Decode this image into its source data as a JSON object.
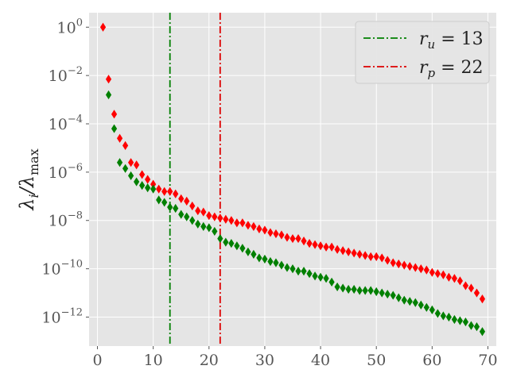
{
  "chart_data": {
    "type": "scatter",
    "title": "",
    "xlabel": "",
    "ylabel": "λi/λmax",
    "xlim": [
      -1.5,
      71.5
    ],
    "ylim_log10": [
      -13.2,
      0.6
    ],
    "y_scale": "log",
    "grid": true,
    "legend_position": "top-right",
    "x_ticks": [
      0,
      10,
      20,
      30,
      40,
      50,
      60,
      70
    ],
    "y_ticks": [
      {
        "exp": 0,
        "label": "10",
        "sup": "0"
      },
      {
        "exp": -2,
        "label": "10",
        "sup": "−2"
      },
      {
        "exp": -4,
        "label": "10",
        "sup": "−4"
      },
      {
        "exp": -6,
        "label": "10",
        "sup": "−6"
      },
      {
        "exp": -8,
        "label": "10",
        "sup": "−8"
      },
      {
        "exp": -10,
        "label": "10",
        "sup": "−10"
      },
      {
        "exp": -12,
        "label": "10",
        "sup": "−12"
      }
    ],
    "series": [
      {
        "color": "#ff0000",
        "marker": "diamond",
        "x": [
          1,
          2,
          3,
          4,
          5,
          6,
          7,
          8,
          9,
          10,
          11,
          12,
          13,
          14,
          15,
          16,
          17,
          18,
          19,
          20,
          21,
          22,
          23,
          24,
          25,
          26,
          27,
          28,
          29,
          30,
          31,
          32,
          33,
          34,
          35,
          36,
          37,
          38,
          39,
          40,
          41,
          42,
          43,
          44,
          45,
          46,
          47,
          48,
          49,
          50,
          51,
          52,
          53,
          54,
          55,
          56,
          57,
          58,
          59,
          60,
          61,
          62,
          63,
          64,
          65,
          66,
          67,
          68,
          69
        ],
        "log10_y": [
          0.0,
          -2.15,
          -3.6,
          -4.6,
          -4.9,
          -5.6,
          -5.7,
          -6.1,
          -6.3,
          -6.5,
          -6.7,
          -6.8,
          -6.8,
          -6.9,
          -7.1,
          -7.2,
          -7.4,
          -7.6,
          -7.65,
          -7.8,
          -7.85,
          -7.9,
          -7.95,
          -8.0,
          -8.1,
          -8.1,
          -8.2,
          -8.25,
          -8.35,
          -8.4,
          -8.5,
          -8.55,
          -8.6,
          -8.7,
          -8.75,
          -8.75,
          -8.85,
          -8.95,
          -9.0,
          -9.05,
          -9.1,
          -9.1,
          -9.2,
          -9.25,
          -9.3,
          -9.35,
          -9.4,
          -9.45,
          -9.5,
          -9.5,
          -9.55,
          -9.65,
          -9.75,
          -9.8,
          -9.85,
          -9.9,
          -9.95,
          -10.0,
          -10.05,
          -10.15,
          -10.2,
          -10.25,
          -10.35,
          -10.4,
          -10.5,
          -10.7,
          -10.8,
          -11.0,
          -11.25
        ]
      },
      {
        "color": "#008000",
        "marker": "diamond",
        "x": [
          2,
          3,
          4,
          5,
          6,
          7,
          8,
          9,
          10,
          11,
          12,
          13,
          14,
          15,
          16,
          17,
          18,
          19,
          20,
          21,
          22,
          23,
          24,
          25,
          26,
          27,
          28,
          29,
          30,
          31,
          32,
          33,
          34,
          35,
          36,
          37,
          38,
          39,
          40,
          41,
          42,
          43,
          44,
          45,
          46,
          47,
          48,
          49,
          50,
          51,
          52,
          53,
          54,
          55,
          56,
          57,
          58,
          59,
          60,
          61,
          62,
          63,
          64,
          65,
          66,
          67,
          68,
          69
        ],
        "log10_y": [
          -2.8,
          -4.2,
          -5.6,
          -5.85,
          -6.15,
          -6.4,
          -6.55,
          -6.65,
          -6.7,
          -7.15,
          -7.25,
          -7.45,
          -7.5,
          -7.75,
          -7.85,
          -8.0,
          -8.15,
          -8.25,
          -8.3,
          -8.45,
          -8.75,
          -8.9,
          -8.95,
          -9.05,
          -9.15,
          -9.3,
          -9.4,
          -9.55,
          -9.6,
          -9.7,
          -9.75,
          -9.85,
          -9.95,
          -10.0,
          -10.1,
          -10.1,
          -10.2,
          -10.3,
          -10.35,
          -10.4,
          -10.55,
          -10.75,
          -10.8,
          -10.85,
          -10.85,
          -10.9,
          -10.9,
          -10.9,
          -10.95,
          -11.0,
          -11.05,
          -11.1,
          -11.2,
          -11.3,
          -11.35,
          -11.4,
          -11.5,
          -11.6,
          -11.7,
          -11.85,
          -11.95,
          -12.0,
          -12.1,
          -12.15,
          -12.2,
          -12.35,
          -12.4,
          -12.6
        ]
      }
    ],
    "vlines": [
      {
        "x": 13,
        "color": "#008000",
        "style": "dashdot",
        "legend_main": "r",
        "legend_sub": "u",
        "legend_rest": " = 13"
      },
      {
        "x": 22,
        "color": "#dd0000",
        "style": "dashdot",
        "legend_main": "r",
        "legend_sub": "p",
        "legend_rest": " = 22"
      }
    ]
  }
}
